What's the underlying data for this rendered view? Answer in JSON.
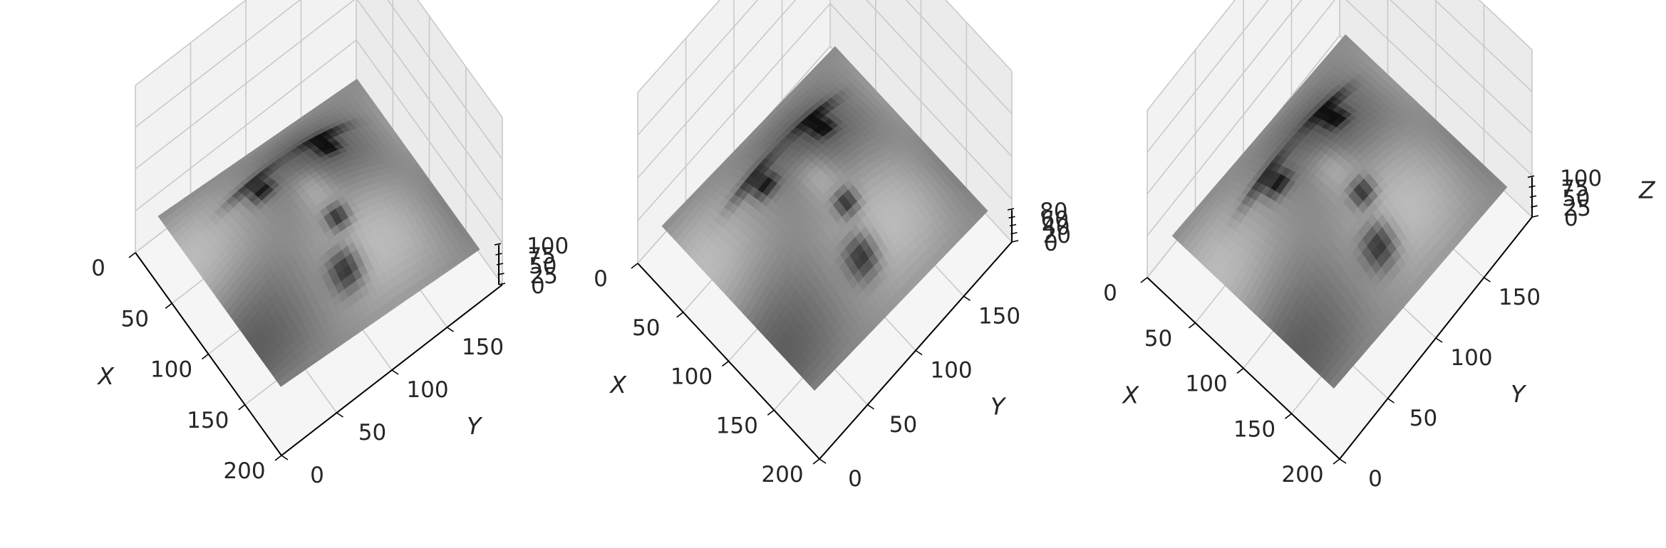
{
  "chart_data": [
    {
      "type": "surface3d",
      "colormap": "grayscale",
      "xlabel": "X",
      "ylabel": "Y",
      "zlabel": "",
      "xticks": [
        0,
        50,
        100,
        150,
        200
      ],
      "yticks": [
        0,
        50,
        100,
        150
      ],
      "zticks": [
        0,
        25,
        50,
        75,
        100
      ],
      "xlim": [
        0,
        200
      ],
      "ylim": [
        0,
        200
      ],
      "zlim": [
        0,
        100
      ],
      "grid": true
    },
    {
      "type": "surface3d",
      "colormap": "grayscale",
      "xlabel": "X",
      "ylabel": "Y",
      "zlabel": "",
      "xticks": [
        0,
        50,
        100,
        150,
        200
      ],
      "yticks": [
        0,
        50,
        100,
        150
      ],
      "zticks": [
        0,
        20,
        40,
        60,
        80
      ],
      "xlim": [
        0,
        200
      ],
      "ylim": [
        0,
        200
      ],
      "zlim": [
        0,
        80
      ],
      "grid": true
    },
    {
      "type": "surface3d",
      "colormap": "grayscale",
      "xlabel": "X",
      "ylabel": "Y",
      "zlabel": "Z",
      "xticks": [
        0,
        50,
        100,
        150,
        200
      ],
      "yticks": [
        0,
        50,
        100,
        150
      ],
      "zticks": [
        0,
        25,
        50,
        75,
        100
      ],
      "xlim": [
        0,
        200
      ],
      "ylim": [
        0,
        200
      ],
      "zlim": [
        0,
        100
      ],
      "grid": true
    }
  ]
}
